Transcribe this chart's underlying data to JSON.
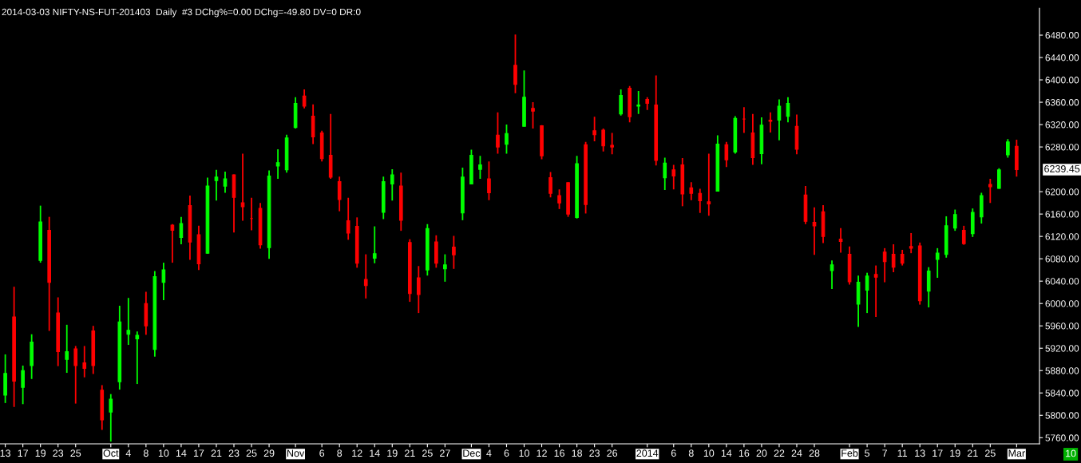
{
  "chart_data": {
    "type": "candlestick",
    "title": "2014-03-03 NIFTY-NS-FUT-201403  Daily  #3 DChg%=0.00 DChg=-49.80 DV=0 DR:0",
    "categories": [
      "13",
      null,
      "17",
      null,
      "19",
      null,
      "23",
      null,
      "25",
      null,
      null,
      null,
      "Oct",
      null,
      "4",
      null,
      "8",
      null,
      "10",
      null,
      "14",
      null,
      "17",
      null,
      "21",
      null,
      "23",
      null,
      "25",
      null,
      "29",
      null,
      null,
      "Nov",
      null,
      null,
      "6",
      null,
      "8",
      null,
      "12",
      null,
      "14",
      null,
      "19",
      null,
      "21",
      null,
      "25",
      null,
      "27",
      null,
      null,
      "Dec",
      null,
      "4",
      null,
      "6",
      null,
      "10",
      null,
      "12",
      null,
      "16",
      null,
      "18",
      null,
      "23",
      null,
      "26",
      null,
      null,
      null,
      "2014",
      null,
      null,
      "6",
      null,
      "8",
      null,
      "10",
      null,
      "14",
      null,
      "16",
      null,
      "20",
      null,
      "22",
      null,
      "24",
      null,
      "28",
      null,
      null,
      null,
      "Feb",
      null,
      "5",
      null,
      "7",
      null,
      "11",
      null,
      "13",
      null,
      "17",
      null,
      "19",
      null,
      "21",
      null,
      "25",
      null,
      null,
      "Mar"
    ],
    "ohlc": [
      [
        5836,
        5909,
        5822,
        5875
      ],
      [
        5976,
        6030,
        5815,
        5861
      ],
      [
        5850,
        5889,
        5820,
        5880
      ],
      [
        5889,
        5945,
        5865,
        5931
      ],
      [
        6077,
        6175,
        6073,
        6146
      ],
      [
        6131,
        6155,
        5951,
        6038
      ],
      [
        5983,
        6011,
        5888,
        5914
      ],
      [
        5900,
        5962,
        5876,
        5914
      ],
      [
        5919,
        5924,
        5821,
        5889
      ],
      [
        5894,
        5924,
        5868,
        5884
      ],
      [
        5951,
        5960,
        5874,
        5889
      ],
      [
        5845,
        5854,
        5774,
        5792
      ],
      [
        5806,
        5838,
        5753,
        5829
      ],
      [
        5860,
        5996,
        5846,
        5967
      ],
      [
        5945,
        6010,
        5926,
        5952
      ],
      [
        5937,
        5950,
        5856,
        5943
      ],
      [
        6000,
        6021,
        5944,
        5960
      ],
      [
        5918,
        6058,
        5905,
        6048
      ],
      [
        6038,
        6073,
        6006,
        6060
      ],
      [
        6140,
        6142,
        6073,
        6131
      ],
      [
        6118,
        6155,
        6106,
        6143
      ],
      [
        6175,
        6193,
        6078,
        6110
      ],
      [
        6123,
        6139,
        6060,
        6071
      ],
      [
        6090,
        6225,
        6089,
        6210
      ],
      [
        6220,
        6239,
        6184,
        6226
      ],
      [
        6210,
        6236,
        6198,
        6223
      ],
      [
        6230,
        6231,
        6127,
        6190
      ],
      [
        6180,
        6268,
        6148,
        6173
      ],
      [
        6152,
        6189,
        6131,
        6152
      ],
      [
        6170,
        6180,
        6098,
        6105
      ],
      [
        6100,
        6238,
        6080,
        6228
      ],
      [
        6246,
        6276,
        6223,
        6252
      ],
      [
        6239,
        6302,
        6234,
        6296
      ],
      [
        6315,
        6369,
        6313,
        6358
      ],
      [
        6371,
        6383,
        6349,
        6353
      ],
      [
        6335,
        6356,
        6285,
        6298
      ],
      [
        6305,
        6309,
        6254,
        6259
      ],
      [
        6265,
        6339,
        6223,
        6226
      ],
      [
        6218,
        6227,
        6165,
        6186
      ],
      [
        6148,
        6189,
        6114,
        6126
      ],
      [
        6138,
        6154,
        6064,
        6072
      ],
      [
        6043,
        6088,
        6009,
        6032
      ],
      [
        6081,
        6138,
        6072,
        6089
      ],
      [
        6163,
        6227,
        6151,
        6218
      ],
      [
        6214,
        6240,
        6184,
        6230
      ],
      [
        6210,
        6234,
        6130,
        6149
      ],
      [
        6109,
        6115,
        6003,
        6018
      ],
      [
        6046,
        6067,
        5983,
        6016
      ],
      [
        6060,
        6142,
        6050,
        6134
      ],
      [
        6110,
        6122,
        6064,
        6072
      ],
      [
        6062,
        6088,
        6039,
        6069
      ],
      [
        6101,
        6121,
        6062,
        6087
      ],
      [
        6162,
        6243,
        6149,
        6226
      ],
      [
        6214,
        6275,
        6214,
        6265
      ],
      [
        6240,
        6264,
        6223,
        6248
      ],
      [
        6223,
        6254,
        6185,
        6198
      ],
      [
        6301,
        6342,
        6268,
        6280
      ],
      [
        6285,
        6320,
        6268,
        6304
      ],
      [
        6426,
        6481,
        6376,
        6392
      ],
      [
        6317,
        6417,
        6317,
        6369
      ],
      [
        6349,
        6360,
        6313,
        6344
      ],
      [
        6318,
        6319,
        6258,
        6264
      ],
      [
        6225,
        6235,
        6190,
        6197
      ],
      [
        6193,
        6204,
        6169,
        6180
      ],
      [
        6216,
        6217,
        6155,
        6160
      ],
      [
        6154,
        6264,
        6152,
        6250
      ],
      [
        6284,
        6289,
        6161,
        6177
      ],
      [
        6309,
        6334,
        6290,
        6302
      ],
      [
        6310,
        6313,
        6272,
        6282
      ],
      [
        6283,
        6305,
        6267,
        6280
      ],
      [
        6339,
        6383,
        6336,
        6372
      ],
      [
        6385,
        6389,
        6324,
        6334
      ],
      [
        6353,
        6380,
        6339,
        6355
      ],
      [
        6365,
        6369,
        6346,
        6358
      ],
      [
        6355,
        6408,
        6247,
        6256
      ],
      [
        6225,
        6261,
        6203,
        6251
      ],
      [
        6239,
        6248,
        6204,
        6228
      ],
      [
        6248,
        6260,
        6174,
        6196
      ],
      [
        6207,
        6217,
        6185,
        6197
      ],
      [
        6197,
        6205,
        6162,
        6184
      ],
      [
        6182,
        6268,
        6157,
        6178
      ],
      [
        6201,
        6301,
        6201,
        6285
      ],
      [
        6284,
        6289,
        6244,
        6257
      ],
      [
        6271,
        6335,
        6268,
        6331
      ],
      [
        6330,
        6351,
        6305,
        6330
      ],
      [
        6305,
        6339,
        6248,
        6261
      ],
      [
        6268,
        6333,
        6249,
        6319
      ],
      [
        6328,
        6342,
        6306,
        6326
      ],
      [
        6328,
        6365,
        6292,
        6353
      ],
      [
        6335,
        6369,
        6324,
        6358
      ],
      [
        6317,
        6338,
        6267,
        6276
      ],
      [
        6194,
        6210,
        6142,
        6147
      ],
      [
        6145,
        6172,
        6087,
        6139
      ],
      [
        6164,
        6176,
        6108,
        6120
      ],
      [
        6059,
        6077,
        6026,
        6069
      ],
      [
        6115,
        6135,
        6091,
        6111
      ],
      [
        6088,
        6102,
        6034,
        6039
      ],
      [
        5999,
        6050,
        5958,
        6038
      ],
      [
        6024,
        6055,
        5983,
        6049
      ],
      [
        6052,
        6068,
        5976,
        6047
      ],
      [
        6092,
        6099,
        6038,
        6075
      ],
      [
        6088,
        6106,
        6056,
        6065
      ],
      [
        6088,
        6096,
        6068,
        6072
      ],
      [
        6102,
        6126,
        6090,
        6099
      ],
      [
        6103,
        6109,
        5998,
        6005
      ],
      [
        6022,
        6065,
        5993,
        6058
      ],
      [
        6079,
        6099,
        6046,
        6090
      ],
      [
        6088,
        6156,
        6082,
        6139
      ],
      [
        6135,
        6168,
        6130,
        6159
      ],
      [
        6131,
        6139,
        6105,
        6107
      ],
      [
        6125,
        6170,
        6119,
        6163
      ],
      [
        6155,
        6198,
        6143,
        6193
      ],
      [
        6213,
        6223,
        6180,
        6209
      ],
      [
        6206,
        6242,
        6205,
        6239
      ],
      [
        6266,
        6294,
        6261,
        6289
      ],
      [
        6281,
        6293,
        6227,
        6239.45
      ]
    ],
    "colors": [
      "#00ff00",
      "#ff0000",
      "#00ff00",
      "#00ff00",
      "#00ff00",
      "#ff0000",
      "#ff0000",
      "#00ff00",
      "#ff0000",
      "#ff0000",
      "#ff0000",
      "#ff0000",
      "#00ff00",
      "#00ff00",
      "#00ff00",
      "#00ff00",
      "#ff0000",
      "#00ff00",
      "#00ff00",
      "#ff0000",
      "#00ff00",
      "#ff0000",
      "#ff0000",
      "#00ff00",
      "#00ff00",
      "#00ff00",
      "#ff0000",
      "#ff0000",
      "#ff0000",
      "#ff0000",
      "#00ff00",
      "#00ff00",
      "#00ff00",
      "#00ff00",
      "#ff0000",
      "#ff0000",
      "#ff0000",
      "#ff0000",
      "#ff0000",
      "#ff0000",
      "#ff0000",
      "#ff0000",
      "#00ff00",
      "#00ff00",
      "#00ff00",
      "#ff0000",
      "#ff0000",
      "#ff0000",
      "#00ff00",
      "#ff0000",
      "#00ff00",
      "#ff0000",
      "#00ff00",
      "#00ff00",
      "#00ff00",
      "#ff0000",
      "#ff0000",
      "#00ff00",
      "#ff0000",
      "#00ff00",
      "#ff0000",
      "#ff0000",
      "#ff0000",
      "#ff0000",
      "#ff0000",
      "#00ff00",
      "#ff0000",
      "#ff0000",
      "#ff0000",
      "#ff0000",
      "#00ff00",
      "#ff0000",
      "#00ff00",
      "#ff0000",
      "#ff0000",
      "#00ff00",
      "#ff0000",
      "#ff0000",
      "#ff0000",
      "#ff0000",
      "#ff0000",
      "#00ff00",
      "#ff0000",
      "#00ff00",
      "#ff0000",
      "#ff0000",
      "#00ff00",
      "#ff0000",
      "#00ff00",
      "#00ff00",
      "#ff0000",
      "#ff0000",
      "#ff0000",
      "#ff0000",
      "#00ff00",
      "#ff0000",
      "#ff0000",
      "#00ff00",
      "#00ff00",
      "#ff0000",
      "#ff0000",
      "#ff0000",
      "#ff0000",
      "#ff0000",
      "#ff0000",
      "#00ff00",
      "#00ff00",
      "#00ff00",
      "#00ff00",
      "#ff0000",
      "#00ff00",
      "#00ff00",
      "#ff0000",
      "#00ff00",
      "#00ff00",
      "#ff0000"
    ],
    "ylim": [
      5749,
      6528
    ],
    "yticks": [
      {
        "value": 5760,
        "label": "5760.00"
      },
      {
        "value": 5800,
        "label": "5800.00"
      },
      {
        "value": 5840,
        "label": "5840.00"
      },
      {
        "value": 5880,
        "label": "5880.00"
      },
      {
        "value": 5920,
        "label": "5920.00"
      },
      {
        "value": 5960,
        "label": "5960.00"
      },
      {
        "value": 6000,
        "label": "6000.00"
      },
      {
        "value": 6040,
        "label": "6040.00"
      },
      {
        "value": 6080,
        "label": "6080.00"
      },
      {
        "value": 6120,
        "label": "6120.00"
      },
      {
        "value": 6160,
        "label": "6160.00"
      },
      {
        "value": 6200,
        "label": "6200.00"
      },
      {
        "value": 6280,
        "label": "6280.00"
      },
      {
        "value": 6320,
        "label": "6320.00"
      },
      {
        "value": 6360,
        "label": "6360.00"
      },
      {
        "value": 6400,
        "label": "6400.00"
      },
      {
        "value": 6440,
        "label": "6440.00"
      },
      {
        "value": 6480,
        "label": "6480.00"
      }
    ],
    "annotations": [
      "6239.45",
      "10"
    ],
    "grid": false,
    "legend": false
  }
}
